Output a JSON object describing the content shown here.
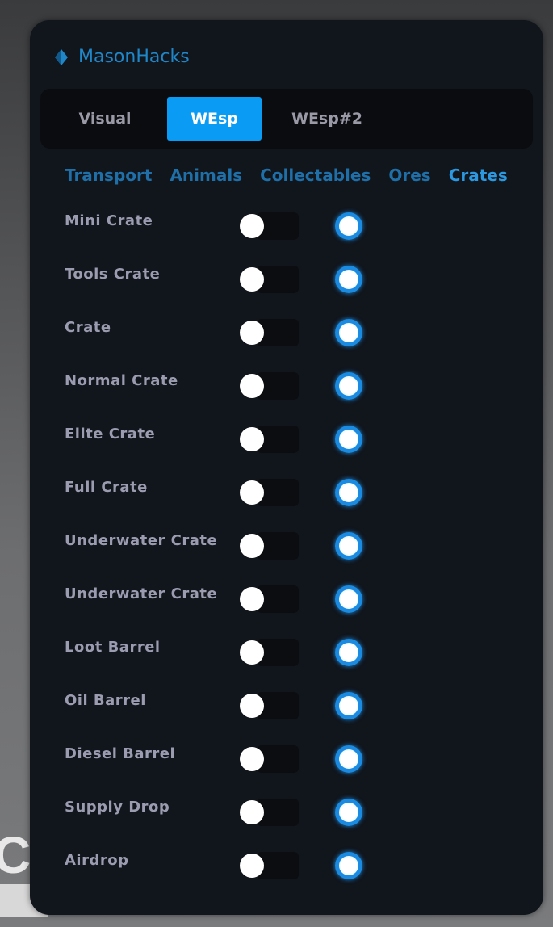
{
  "background_text": "CT",
  "app": {
    "title": "MasonHacks",
    "logo_icon": "blue-diamond-icon",
    "accent": "#0a9cf5"
  },
  "tabs": [
    {
      "label": "Visual",
      "active": false
    },
    {
      "label": "WEsp",
      "active": true
    },
    {
      "label": "WEsp#2",
      "active": false
    }
  ],
  "subtabs": [
    {
      "label": "Transport",
      "active": false
    },
    {
      "label": "Animals",
      "active": false
    },
    {
      "label": "Collectables",
      "active": false
    },
    {
      "label": "Ores",
      "active": false
    },
    {
      "label": "Crates",
      "active": true
    }
  ],
  "items": [
    {
      "label": "Mini Crate",
      "toggle": false,
      "radio": true
    },
    {
      "label": "Tools Crate",
      "toggle": false,
      "radio": true
    },
    {
      "label": "Crate",
      "toggle": false,
      "radio": true
    },
    {
      "label": "Normal Crate",
      "toggle": false,
      "radio": true
    },
    {
      "label": "Elite Crate",
      "toggle": false,
      "radio": true
    },
    {
      "label": "Full Crate",
      "toggle": false,
      "radio": true
    },
    {
      "label": "Underwater Crate",
      "toggle": false,
      "radio": true
    },
    {
      "label": "Underwater Crate",
      "toggle": false,
      "radio": true
    },
    {
      "label": "Loot Barrel",
      "toggle": false,
      "radio": true
    },
    {
      "label": "Oil Barrel",
      "toggle": false,
      "radio": true
    },
    {
      "label": "Diesel Barrel",
      "toggle": false,
      "radio": true
    },
    {
      "label": "Supply Drop",
      "toggle": false,
      "radio": true
    },
    {
      "label": "Airdrop",
      "toggle": false,
      "radio": true
    }
  ]
}
